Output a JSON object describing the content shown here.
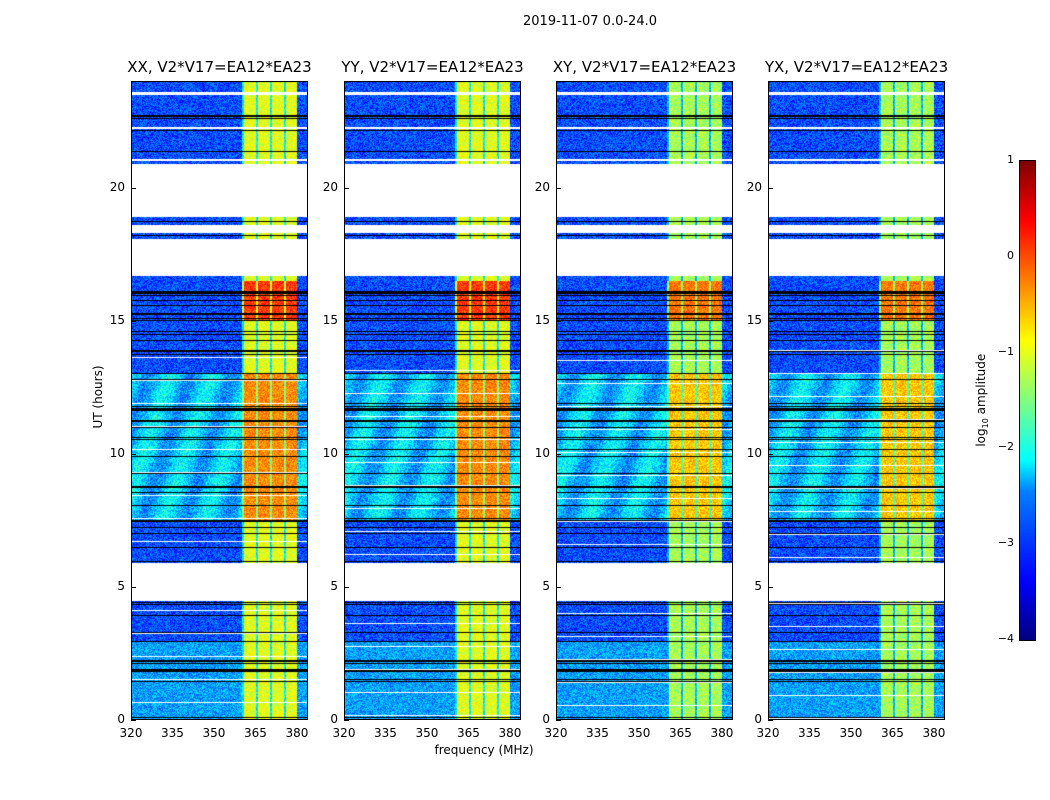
{
  "figure_title": "2019-11-07 0.0-24.0",
  "chart_data": {
    "type": "heatmap",
    "title": "2019-11-07 0.0-24.0",
    "xlabel": "frequency (MHz)",
    "ylabel": "UT (hours)",
    "xlim": [
      320,
      384
    ],
    "ylim": [
      0,
      24
    ],
    "xticks": [
      "320",
      "335",
      "350",
      "365",
      "380"
    ],
    "yticks": [
      "0",
      "5",
      "10",
      "15",
      "20"
    ],
    "panels": [
      {
        "title": "XX, V2*V17=EA12*EA23"
      },
      {
        "title": "YY, V2*V17=EA12*EA23"
      },
      {
        "title": "XY, V2*V17=EA12*EA23"
      },
      {
        "title": "YX, V2*V17=EA12*EA23"
      }
    ],
    "colorbar": {
      "label": "log10 amplitude",
      "label_main": "log",
      "label_sub": "10",
      "label_rest": " amplitude",
      "range": [
        -4,
        1
      ],
      "ticks": [
        "1",
        "0",
        "−1",
        "−2",
        "−3",
        "−4"
      ],
      "colormap": "jet"
    },
    "flagged_ut_ranges": [
      [
        4.5,
        5.9
      ],
      [
        16.7,
        18.1
      ],
      [
        18.3,
        18.6
      ],
      [
        18.9,
        20.9
      ],
      [
        21.0,
        21.1
      ],
      [
        22.2,
        22.3
      ],
      [
        23.5,
        23.6
      ]
    ],
    "bright_band_mhz": [
      360,
      380
    ],
    "background_log_amp": -3.0,
    "band_log_amp": {
      "default": -1.0,
      "ut_7.5_13": -0.3,
      "ut_15_16.5": 0.1
    }
  }
}
